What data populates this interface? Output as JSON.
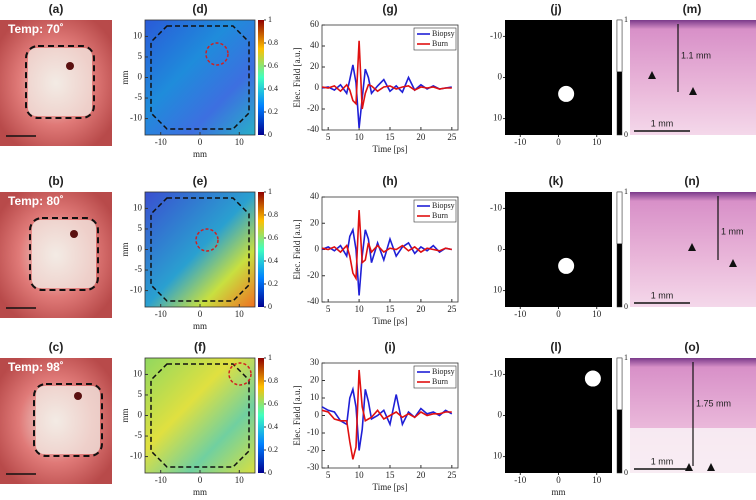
{
  "photos": [
    {
      "label": "(a)",
      "temp": "Temp: 70˚"
    },
    {
      "label": "(b)",
      "temp": "Temp: 80˚"
    },
    {
      "label": "(c)",
      "temp": "Temp: 98˚"
    }
  ],
  "heatmaps": {
    "labels": [
      "(d)",
      "(e)",
      "(f)"
    ],
    "xlabel": "mm",
    "ylabel": "mm",
    "xlim": [
      -14,
      14
    ],
    "ylim": [
      -14,
      14
    ],
    "xticks": [
      -10,
      0,
      10
    ],
    "yticks": [
      -10,
      -5,
      0,
      5,
      10
    ],
    "colorbar_ticks": [
      0,
      0.2,
      0.4,
      0.6,
      0.8,
      1
    ]
  },
  "chart_data": [
    {
      "type": "line",
      "title": "(g)",
      "xlabel": "Time [ps]",
      "ylabel": "Elec. Field [a.u.]",
      "xlim": [
        4,
        26
      ],
      "ylim": [
        -40,
        60
      ],
      "xticks": [
        5,
        10,
        15,
        20,
        25
      ],
      "yticks": [
        -40,
        -20,
        0,
        20,
        40,
        60
      ],
      "x": [
        4,
        5,
        6,
        7,
        8,
        8.5,
        9,
        9.5,
        10,
        10.5,
        11,
        11.5,
        12,
        13,
        14,
        15,
        16,
        17,
        18,
        19,
        20,
        21,
        22,
        23,
        24,
        25
      ],
      "series": [
        {
          "name": "Biopsy",
          "color": "#1f1fd6",
          "values": [
            0,
            1,
            -2,
            3,
            -5,
            8,
            22,
            5,
            -38,
            -10,
            18,
            10,
            -5,
            2,
            8,
            -3,
            2,
            -4,
            10,
            -2,
            3,
            -1,
            2,
            -1,
            0,
            1
          ]
        },
        {
          "name": "Burn",
          "color": "#e01010",
          "values": [
            1,
            0,
            2,
            -3,
            3,
            -2,
            -12,
            -15,
            45,
            -20,
            -5,
            3,
            2,
            -3,
            1,
            2,
            -1,
            1,
            2,
            -2,
            1,
            0,
            1,
            -1,
            0,
            0
          ]
        }
      ]
    },
    {
      "type": "line",
      "title": "(h)",
      "xlabel": "Time [ps]",
      "ylabel": "Elec. Field [a.u.]",
      "xlim": [
        4,
        26
      ],
      "ylim": [
        -40,
        40
      ],
      "xticks": [
        5,
        10,
        15,
        20,
        25
      ],
      "yticks": [
        -40,
        -20,
        0,
        20,
        40
      ],
      "x": [
        4,
        5,
        6,
        7,
        8,
        8.5,
        9,
        9.5,
        10,
        10.5,
        11,
        11.5,
        12,
        13,
        14,
        15,
        16,
        17,
        18,
        19,
        20,
        21,
        22,
        23,
        24,
        25
      ],
      "series": [
        {
          "name": "Biopsy",
          "color": "#1f1fd6",
          "values": [
            0,
            2,
            -1,
            3,
            -5,
            10,
            15,
            0,
            -35,
            -5,
            15,
            8,
            -10,
            5,
            -8,
            8,
            -5,
            2,
            5,
            -3,
            2,
            -1,
            3,
            -2,
            1,
            0
          ]
        },
        {
          "name": "Burn",
          "color": "#e01010",
          "values": [
            1,
            0,
            2,
            -2,
            3,
            -5,
            -18,
            -22,
            30,
            -10,
            -8,
            5,
            -2,
            3,
            -2,
            1,
            0,
            3,
            -1,
            2,
            -2,
            1,
            0,
            -1,
            1,
            0
          ]
        }
      ]
    },
    {
      "type": "line",
      "title": "(i)",
      "xlabel": "Time [ps]",
      "ylabel": "Elec. Field [a.u.]",
      "xlim": [
        4,
        26
      ],
      "ylim": [
        -30,
        30
      ],
      "xticks": [
        5,
        10,
        15,
        20,
        25
      ],
      "yticks": [
        -30,
        -20,
        -10,
        0,
        10,
        20,
        30
      ],
      "x": [
        4,
        5,
        6,
        7,
        8,
        8.5,
        9,
        9.5,
        10,
        10.5,
        11,
        11.5,
        12,
        13,
        14,
        15,
        16,
        17,
        18,
        19,
        20,
        21,
        22,
        23,
        24,
        25
      ],
      "series": [
        {
          "name": "Biopsy",
          "color": "#1f1fd6",
          "values": [
            5,
            3,
            2,
            -3,
            -5,
            10,
            15,
            5,
            -20,
            -8,
            15,
            8,
            -2,
            0,
            3,
            -5,
            12,
            -5,
            2,
            -1,
            4,
            1,
            2,
            0,
            3,
            1
          ]
        },
        {
          "name": "Burn",
          "color": "#e01010",
          "values": [
            3,
            2,
            -2,
            -3,
            -3,
            -15,
            -25,
            -18,
            26,
            5,
            -3,
            -2,
            -1,
            3,
            -2,
            0,
            2,
            -1,
            1,
            -1,
            2,
            0,
            1,
            1,
            2,
            2
          ]
        }
      ]
    }
  ],
  "masks": {
    "labels": [
      "(j)",
      "(k)",
      "(l)"
    ],
    "xlabel": "mm",
    "xlim": [
      -14,
      14
    ],
    "ylim": [
      -14,
      14
    ],
    "yreverse": true,
    "xticks": [
      -10,
      0,
      10
    ],
    "yticks": [
      -10,
      0,
      10
    ],
    "colorbar_ticks": [
      0,
      1
    ],
    "centers": [
      [
        2,
        4
      ],
      [
        2,
        4
      ],
      [
        9,
        -9
      ]
    ]
  },
  "histology": [
    {
      "label": "(m)",
      "depth": "1.1 mm",
      "scale": "1 mm"
    },
    {
      "label": "(n)",
      "depth": "1 mm",
      "scale": "1 mm"
    },
    {
      "label": "(o)",
      "depth": "1.75 mm",
      "scale": "1 mm"
    }
  ]
}
